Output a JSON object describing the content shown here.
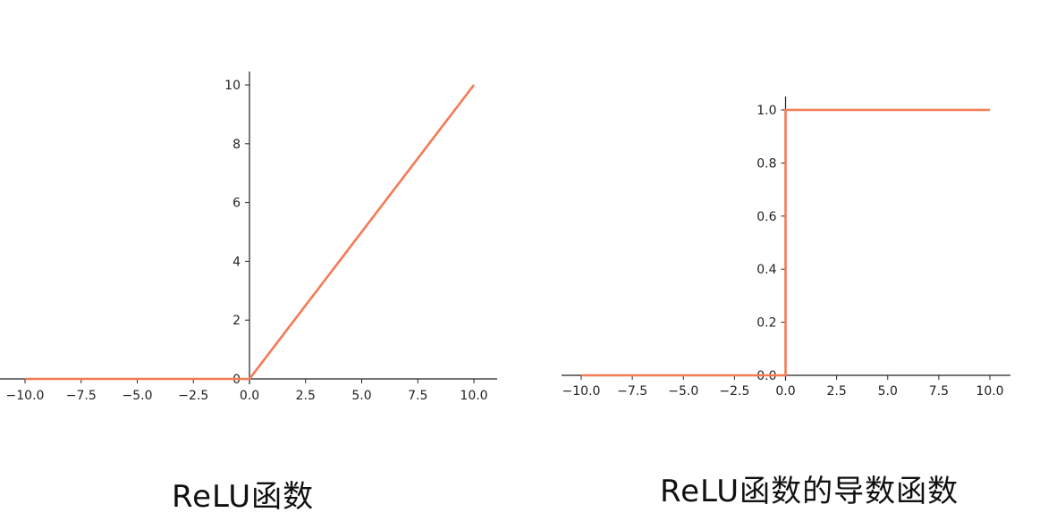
{
  "captions": {
    "left": "ReLU函数",
    "right": "ReLU函数的导数函数"
  },
  "colors": {
    "line": "#f47a55",
    "axis": "#222222"
  },
  "chart_data": [
    {
      "type": "line",
      "title": "",
      "xlabel": "",
      "ylabel": "",
      "xlim": [
        -10,
        10
      ],
      "ylim": [
        0,
        10
      ],
      "grid": false,
      "spines": "centered",
      "x_ticks": [
        -10,
        -7.5,
        -5,
        -2.5,
        0,
        2.5,
        5,
        7.5,
        10
      ],
      "x_tick_labels": [
        "−10.0",
        "−7.5",
        "−5.0",
        "−2.5",
        "0.0",
        "2.5",
        "5.0",
        "7.5",
        "10.0"
      ],
      "y_ticks": [
        0,
        2,
        4,
        6,
        8,
        10
      ],
      "y_tick_labels": [
        "0",
        "2",
        "4",
        "6",
        "8",
        "10"
      ],
      "series": [
        {
          "x": [
            -10,
            0,
            10
          ],
          "y": [
            0,
            0,
            10
          ]
        }
      ]
    },
    {
      "type": "line",
      "title": "",
      "xlabel": "",
      "ylabel": "",
      "xlim": [
        -10,
        10
      ],
      "ylim": [
        0,
        1
      ],
      "grid": false,
      "spines": "centered",
      "x_ticks": [
        -10,
        -7.5,
        -5,
        -2.5,
        0,
        2.5,
        5,
        7.5,
        10
      ],
      "x_tick_labels": [
        "−10.0",
        "−7.5",
        "−5.0",
        "−2.5",
        "0.0",
        "2.5",
        "5.0",
        "7.5",
        "10.0"
      ],
      "y_ticks": [
        0,
        0.2,
        0.4,
        0.6,
        0.8,
        1.0
      ],
      "y_tick_labels": [
        "0.0",
        "0.2",
        "0.4",
        "0.6",
        "0.8",
        "1.0"
      ],
      "series": [
        {
          "x": [
            -10,
            0,
            0,
            10
          ],
          "y": [
            0,
            0,
            1,
            1
          ]
        }
      ]
    }
  ]
}
